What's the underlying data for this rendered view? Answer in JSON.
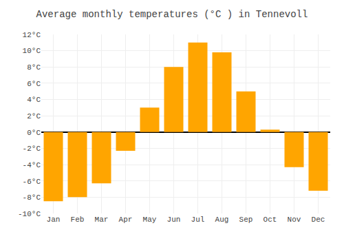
{
  "chart_data": {
    "type": "bar",
    "title": "Average monthly temperatures (°C ) in Tennevoll",
    "categories": [
      "Jan",
      "Feb",
      "Mar",
      "Apr",
      "May",
      "Jun",
      "Jul",
      "Aug",
      "Sep",
      "Oct",
      "Nov",
      "Dec"
    ],
    "values": [
      -8.5,
      -8.0,
      -6.3,
      -2.3,
      3.0,
      8.0,
      11.0,
      9.8,
      5.0,
      0.3,
      -4.3,
      -7.2
    ],
    "color": "#FFA500",
    "ylim": [
      -10,
      12
    ],
    "yticks": [
      {
        "value": -10,
        "label": "-10°C"
      },
      {
        "value": -8,
        "label": "-8°C"
      },
      {
        "value": -6,
        "label": "-6°C"
      },
      {
        "value": -4,
        "label": "-4°C"
      },
      {
        "value": -2,
        "label": "-2°C"
      },
      {
        "value": 0,
        "label": "0°C"
      },
      {
        "value": 2,
        "label": "2°C"
      },
      {
        "value": 4,
        "label": "4°C"
      },
      {
        "value": 6,
        "label": "6°C"
      },
      {
        "value": 8,
        "label": "8°C"
      },
      {
        "value": 10,
        "label": "10°C"
      },
      {
        "value": 12,
        "label": "12°C"
      }
    ],
    "grid": true
  }
}
